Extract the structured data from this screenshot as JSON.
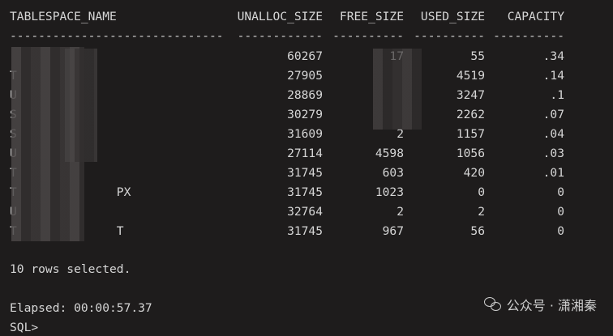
{
  "columns": [
    "TABLESPACE_NAME",
    "UNALLOC_SIZE",
    "FREE_SIZE",
    "USED_SIZE",
    "CAPACITY"
  ],
  "separators": [
    "------------------------------",
    "------------",
    "----------",
    "----------",
    "----------"
  ],
  "rows": [
    {
      "name": "",
      "unalloc": "60267",
      "free": "17",
      "used": "55",
      "capacity": ".34"
    },
    {
      "name": "T",
      "unalloc": "27905",
      "free": "",
      "used": "4519",
      "capacity": ".14"
    },
    {
      "name": "U",
      "unalloc": "28869",
      "free": "",
      "used": "3247",
      "capacity": ".1"
    },
    {
      "name": "S",
      "unalloc": "30279",
      "free": "",
      "used": "2262",
      "capacity": ".07"
    },
    {
      "name": "S",
      "unalloc": "31609",
      "free": "2",
      "used": "1157",
      "capacity": ".04"
    },
    {
      "name": "U",
      "unalloc": "27114",
      "free": "4598",
      "used": "1056",
      "capacity": ".03"
    },
    {
      "name": "T",
      "unalloc": "31745",
      "free": "603",
      "used": "420",
      "capacity": ".01"
    },
    {
      "name": "T              PX",
      "unalloc": "31745",
      "free": "1023",
      "used": "0",
      "capacity": "0"
    },
    {
      "name": "U",
      "unalloc": "32764",
      "free": "2",
      "used": "2",
      "capacity": "0"
    },
    {
      "name": "T              T",
      "unalloc": "31745",
      "free": "967",
      "used": "56",
      "capacity": "0"
    }
  ],
  "footer": {
    "rows_selected": "10 rows selected.",
    "elapsed": "Elapsed: 00:00:57.37",
    "prompt": "SQL>"
  },
  "watermark": {
    "text": "公众号 · 潇湘秦",
    "icon": "wechat-icon"
  }
}
